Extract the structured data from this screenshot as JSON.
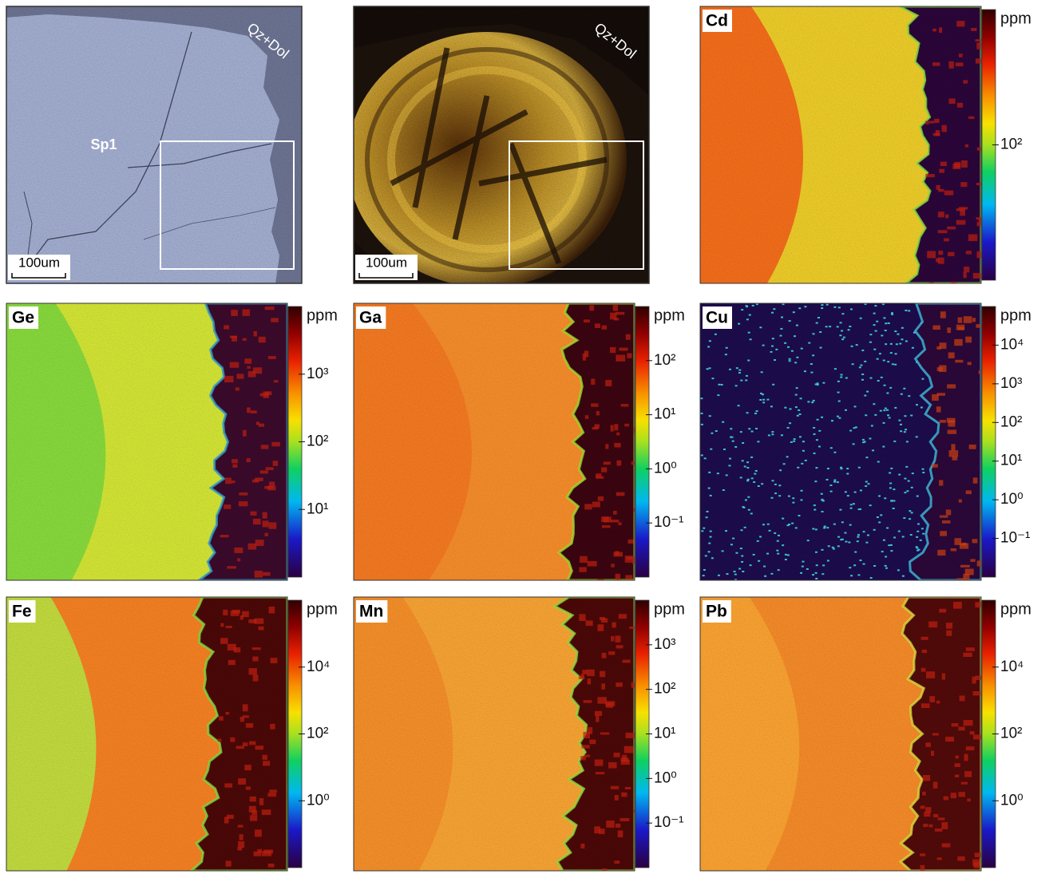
{
  "figure": {
    "bse_image": {
      "mineral_label": "Sp1",
      "matrix_label": "Qz+Dol",
      "scale_bar": "100um"
    },
    "cl_image": {
      "matrix_label": "Qz+Dol",
      "scale_bar": "100um"
    },
    "maps": [
      {
        "element": "Cd",
        "unit": "ppm",
        "log_scale": true,
        "clim": [
          10,
          1000
        ],
        "ticks": [
          {
            "value": 100,
            "label": "10²"
          }
        ]
      },
      {
        "element": "Ge",
        "unit": "ppm",
        "log_scale": true,
        "clim": [
          1,
          10000
        ],
        "ticks": [
          {
            "value": 1000,
            "label": "10³"
          },
          {
            "value": 100,
            "label": "10²"
          },
          {
            "value": 10,
            "label": "10¹"
          }
        ]
      },
      {
        "element": "Ga",
        "unit": "ppm",
        "log_scale": true,
        "clim": [
          0.01,
          1000
        ],
        "ticks": [
          {
            "value": 100,
            "label": "10²"
          },
          {
            "value": 10,
            "label": "10¹"
          },
          {
            "value": 1,
            "label": "10⁰"
          },
          {
            "value": 0.1,
            "label": "10⁻¹"
          }
        ]
      },
      {
        "element": "Cu",
        "unit": "ppm",
        "log_scale": true,
        "clim": [
          0.01,
          100000
        ],
        "ticks": [
          {
            "value": 10000,
            "label": "10⁴"
          },
          {
            "value": 1000,
            "label": "10³"
          },
          {
            "value": 100,
            "label": "10²"
          },
          {
            "value": 10,
            "label": "10¹"
          },
          {
            "value": 1,
            "label": "10⁰"
          },
          {
            "value": 0.1,
            "label": "10⁻¹"
          }
        ]
      },
      {
        "element": "Fe",
        "unit": "ppm",
        "log_scale": true,
        "clim": [
          0.01,
          1000000
        ],
        "ticks": [
          {
            "value": 10000,
            "label": "10⁴"
          },
          {
            "value": 100,
            "label": "10²"
          },
          {
            "value": 1,
            "label": "10⁰"
          }
        ]
      },
      {
        "element": "Mn",
        "unit": "ppm",
        "log_scale": true,
        "clim": [
          0.01,
          10000
        ],
        "ticks": [
          {
            "value": 1000,
            "label": "10³"
          },
          {
            "value": 100,
            "label": "10²"
          },
          {
            "value": 10,
            "label": "10¹"
          },
          {
            "value": 1,
            "label": "10⁰"
          },
          {
            "value": 0.1,
            "label": "10⁻¹"
          }
        ]
      },
      {
        "element": "Pb",
        "unit": "ppm",
        "log_scale": true,
        "clim": [
          0.01,
          1000000
        ],
        "ticks": [
          {
            "value": 10000,
            "label": "10⁴"
          },
          {
            "value": 100,
            "label": "10²"
          },
          {
            "value": 1,
            "label": "10⁰"
          }
        ]
      }
    ]
  }
}
